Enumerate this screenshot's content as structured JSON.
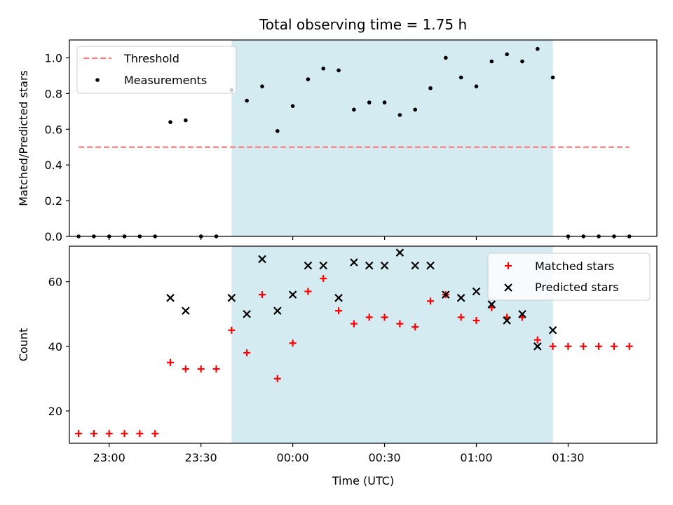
{
  "chart_data": {
    "title": "Total observing time = 1.75 h",
    "shaded_window": {
      "start": "23:40",
      "end": "01:25",
      "color": "#add8e6"
    },
    "xlabel": "Time (UTC)",
    "x_ticks": [
      "23:00",
      "23:30",
      "00:00",
      "00:30",
      "01:00",
      "01:30"
    ],
    "x_range": [
      "22:47",
      "01:59"
    ],
    "top": {
      "type": "scatter",
      "ylabel": "Matched/Predicted stars",
      "ylim": [
        0,
        1.1
      ],
      "y_ticks": [
        "0.0",
        "0.2",
        "0.4",
        "0.6",
        "0.8",
        "1.0"
      ],
      "threshold": {
        "name": "Threshold",
        "value": 0.5,
        "color": "#ff7f7f"
      },
      "series": [
        {
          "name": "Measurements",
          "color": "#000000",
          "x": [
            "22:50",
            "22:55",
            "23:00",
            "23:05",
            "23:10",
            "23:15",
            "23:20",
            "23:25",
            "23:30",
            "23:35",
            "23:40",
            "23:45",
            "23:50",
            "23:55",
            "00:00",
            "00:05",
            "00:10",
            "00:15",
            "00:20",
            "00:25",
            "00:30",
            "00:35",
            "00:40",
            "00:45",
            "00:50",
            "00:55",
            "01:00",
            "01:05",
            "01:10",
            "01:15",
            "01:20",
            "01:25",
            "01:30",
            "01:35",
            "01:40",
            "01:45",
            "01:50"
          ],
          "values": [
            0,
            0,
            0,
            0,
            0,
            0,
            0.64,
            0.65,
            0,
            0,
            0.82,
            0.76,
            0.84,
            0.59,
            0.73,
            0.88,
            0.94,
            0.93,
            0.71,
            0.75,
            0.75,
            0.68,
            0.71,
            0.83,
            1.0,
            0.89,
            0.84,
            0.98,
            1.02,
            0.98,
            1.05,
            0.89,
            0,
            0,
            0,
            0,
            0
          ]
        }
      ],
      "legend_placement": "upper-left"
    },
    "bottom": {
      "type": "scatter",
      "ylabel": "Count",
      "ylim": [
        10,
        71
      ],
      "y_ticks": [
        "20",
        "40",
        "60"
      ],
      "series": [
        {
          "name": "Matched stars",
          "marker": "plus",
          "color": "#ff0000",
          "x": [
            "22:50",
            "22:55",
            "23:00",
            "23:05",
            "23:10",
            "23:15",
            "23:20",
            "23:25",
            "23:30",
            "23:35",
            "23:40",
            "23:45",
            "23:50",
            "23:55",
            "00:00",
            "00:05",
            "00:10",
            "00:15",
            "00:20",
            "00:25",
            "00:30",
            "00:35",
            "00:40",
            "00:45",
            "00:50",
            "00:55",
            "01:00",
            "01:05",
            "01:10",
            "01:15",
            "01:20",
            "01:25",
            "01:30",
            "01:35",
            "01:40",
            "01:45",
            "01:50"
          ],
          "values": [
            13,
            13,
            13,
            13,
            13,
            13,
            35,
            33,
            33,
            33,
            45,
            38,
            56,
            30,
            41,
            57,
            61,
            51,
            47,
            49,
            49,
            47,
            46,
            54,
            56,
            49,
            48,
            52,
            49,
            49,
            42,
            40,
            40,
            40,
            40,
            40,
            40
          ]
        },
        {
          "name": "Predicted stars",
          "marker": "x",
          "color": "#000000",
          "x": [
            "23:20",
            "23:25",
            "23:40",
            "23:45",
            "23:50",
            "23:55",
            "00:00",
            "00:05",
            "00:10",
            "00:15",
            "00:20",
            "00:25",
            "00:30",
            "00:35",
            "00:40",
            "00:45",
            "00:50",
            "00:55",
            "01:00",
            "01:05",
            "01:10",
            "01:15",
            "01:20",
            "01:25"
          ],
          "values": [
            55,
            51,
            55,
            50,
            67,
            51,
            56,
            65,
            65,
            55,
            66,
            65,
            65,
            69,
            65,
            65,
            56,
            55,
            57,
            53,
            48,
            50,
            40,
            45
          ]
        }
      ],
      "legend_placement": "upper-right"
    }
  }
}
